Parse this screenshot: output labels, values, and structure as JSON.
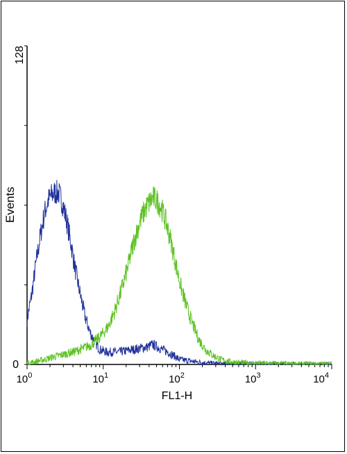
{
  "chart_data": {
    "type": "line",
    "title": "",
    "xlabel": "FL1-H",
    "ylabel": "Events",
    "x_scale": "log",
    "xlim": [
      1,
      10000
    ],
    "ylim": [
      0,
      128
    ],
    "y_ticks": [
      0,
      128
    ],
    "x_ticks": [
      {
        "value": 1,
        "base": "10",
        "exp": "0"
      },
      {
        "value": 10,
        "base": "10",
        "exp": "1"
      },
      {
        "value": 100,
        "base": "10",
        "exp": "2"
      },
      {
        "value": 1000,
        "base": "10",
        "exp": "3"
      },
      {
        "value": 10000,
        "base": "10",
        "exp": "4"
      }
    ],
    "grid": false,
    "series": [
      {
        "color": "#1f2f9a",
        "points": [
          [
            1.0,
            18
          ],
          [
            1.15,
            28
          ],
          [
            1.3,
            40
          ],
          [
            1.5,
            52
          ],
          [
            1.7,
            61
          ],
          [
            1.9,
            66
          ],
          [
            2.1,
            68
          ],
          [
            2.3,
            69
          ],
          [
            2.6,
            69
          ],
          [
            2.9,
            65
          ],
          [
            3.3,
            58
          ],
          [
            3.8,
            48
          ],
          [
            4.3,
            38
          ],
          [
            5.0,
            28
          ],
          [
            5.8,
            19
          ],
          [
            6.7,
            13
          ],
          [
            7.8,
            9
          ],
          [
            9.0,
            6
          ],
          [
            11,
            5
          ],
          [
            13,
            5
          ],
          [
            16,
            5
          ],
          [
            20,
            5.5
          ],
          [
            25,
            6
          ],
          [
            30,
            6.5
          ],
          [
            38,
            7
          ],
          [
            45,
            8
          ],
          [
            52,
            7
          ],
          [
            60,
            6
          ],
          [
            70,
            5
          ],
          [
            85,
            3.5
          ],
          [
            100,
            2
          ],
          [
            130,
            1.5
          ],
          [
            170,
            1
          ],
          [
            250,
            0.5
          ],
          [
            400,
            0.3
          ],
          [
            1000,
            0.2
          ],
          [
            10000,
            0.1
          ]
        ]
      },
      {
        "color": "#5cc122",
        "points": [
          [
            1.0,
            0.5
          ],
          [
            1.3,
            1.2
          ],
          [
            1.7,
            2
          ],
          [
            2.2,
            3
          ],
          [
            3.0,
            4
          ],
          [
            4.0,
            5
          ],
          [
            5.5,
            6.5
          ],
          [
            7.0,
            8
          ],
          [
            9.0,
            11
          ],
          [
            11.5,
            15
          ],
          [
            14,
            21
          ],
          [
            17,
            29
          ],
          [
            21,
            39
          ],
          [
            25,
            49
          ],
          [
            30,
            57
          ],
          [
            35,
            62
          ],
          [
            40,
            65
          ],
          [
            45,
            67
          ],
          [
            50,
            66
          ],
          [
            58,
            63
          ],
          [
            67,
            57
          ],
          [
            78,
            49
          ],
          [
            90,
            40
          ],
          [
            105,
            31
          ],
          [
            125,
            23
          ],
          [
            150,
            16
          ],
          [
            180,
            10
          ],
          [
            220,
            6
          ],
          [
            280,
            3.5
          ],
          [
            350,
            2
          ],
          [
            450,
            1.2
          ],
          [
            600,
            0.8
          ],
          [
            800,
            0.6
          ],
          [
            1200,
            0.5
          ],
          [
            2000,
            0.4
          ],
          [
            4000,
            0.3
          ],
          [
            7000,
            0.3
          ],
          [
            10000,
            0.3
          ]
        ]
      }
    ]
  }
}
